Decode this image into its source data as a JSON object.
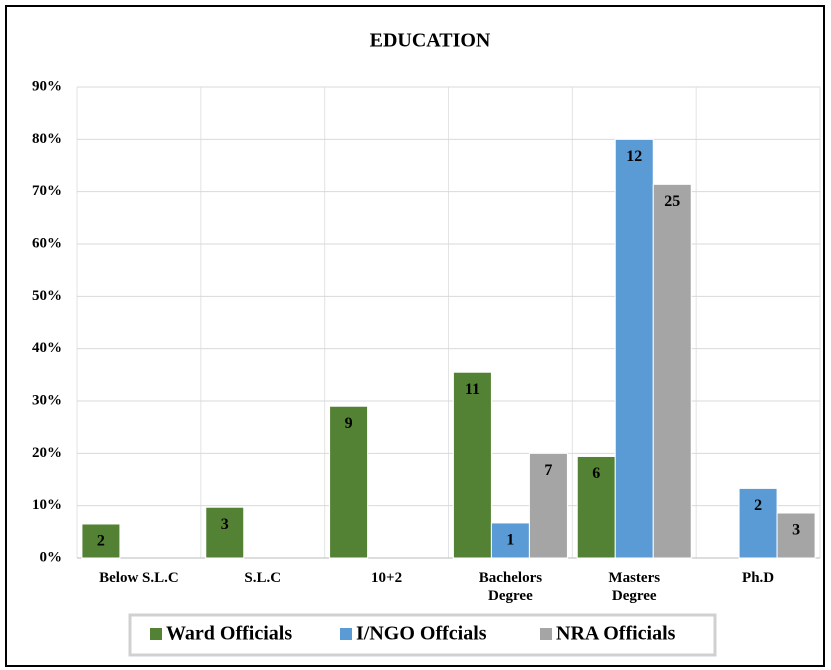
{
  "chart_data": {
    "type": "bar",
    "title": "EDUCATION",
    "categories": [
      "Below S.L.C",
      "S.L.C",
      "10+2",
      "Bachelors\nDegree",
      "Masters\nDegree",
      "Ph.D"
    ],
    "series": [
      {
        "name": "Ward Officials",
        "color": "#548235",
        "values": [
          6.5,
          9.7,
          29,
          35.5,
          19.4,
          null
        ],
        "counts": [
          2,
          3,
          9,
          11,
          6,
          null
        ]
      },
      {
        "name": "I/NGO Offcials",
        "color": "#5b9bd5",
        "values": [
          null,
          null,
          null,
          6.7,
          80,
          13.3
        ],
        "counts": [
          null,
          null,
          null,
          1,
          12,
          2
        ]
      },
      {
        "name": "NRA Officials",
        "color": "#a5a5a5",
        "values": [
          null,
          null,
          null,
          20,
          71.4,
          8.6
        ],
        "counts": [
          null,
          null,
          null,
          7,
          25,
          3
        ]
      }
    ],
    "ylim": [
      0,
      90
    ],
    "yticks": [
      {
        "value": 0,
        "label": "0%"
      },
      {
        "value": 10,
        "label": "10%"
      },
      {
        "value": 20,
        "label": "20%"
      },
      {
        "value": 30,
        "label": "30%"
      },
      {
        "value": 40,
        "label": "40%"
      },
      {
        "value": 50,
        "label": "50%"
      },
      {
        "value": 60,
        "label": "60%"
      },
      {
        "value": 70,
        "label": "70%"
      },
      {
        "value": 80,
        "label": "80%"
      },
      {
        "value": 90,
        "label": "90%"
      }
    ],
    "grid": true,
    "legend": "bottom"
  }
}
